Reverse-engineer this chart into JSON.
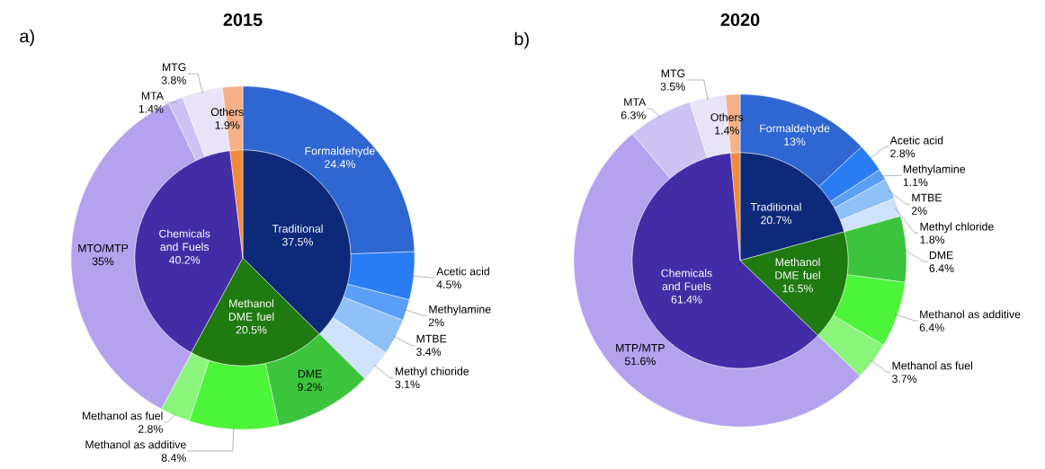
{
  "chart_data": [
    {
      "type": "pie",
      "title": "2015",
      "annotations": [
        "a)"
      ],
      "categories": [
        "Traditional",
        "Methanol DME fuel",
        "Chemicals and Fuels",
        "Others"
      ],
      "values": [
        37.5,
        20.5,
        40.2,
        1.9
      ],
      "value_labels": [
        "37.5%",
        "20.5%",
        "40.2%",
        "1.9%"
      ],
      "colors": [
        "#0d2a7a",
        "#1f7a10",
        "#432da6",
        "#f08a3c"
      ]
    },
    {
      "type": "donut",
      "categories": [
        "Formaldehyde",
        "Acetic acid",
        "Methylamine",
        "MTBE",
        "Methyl chioride",
        "DME",
        "Methanol as additive",
        "Methanol as fuel",
        "MTO/MTP",
        "MTA",
        "MTG",
        null
      ],
      "values": [
        24.4,
        4.5,
        2,
        3.4,
        3.1,
        9.2,
        8.4,
        2.8,
        35,
        1.4,
        3.8,
        1.9
      ],
      "value_labels": [
        "24.4%",
        "4.5%",
        "2%",
        "3.4%",
        "3.1%",
        "9.2%",
        "8.4%",
        "2.8%",
        "35%",
        "1.4%",
        "3.8%",
        null
      ],
      "colors": [
        "#2e66d2",
        "#2a7cf2",
        "#5a9ef5",
        "#8fc0f7",
        "#cfe2fb",
        "#3cc43c",
        "#4cf43a",
        "#8af57a",
        "#b5a2ef",
        "#cdc2f4",
        "#e9e3f9",
        "#f5b08a"
      ]
    },
    {
      "type": "pie",
      "title": "2020",
      "annotations": [
        "b)"
      ],
      "categories": [
        "Traditional",
        "Methanol DME fuel",
        "Chemicals and Fuels",
        "Others"
      ],
      "values": [
        20.7,
        16.5,
        61.4,
        1.4
      ],
      "value_labels": [
        "20.7%",
        "16.5%",
        "61.4%",
        "1.4%"
      ],
      "colors": [
        "#0d2a7a",
        "#1f7a10",
        "#432da6",
        "#f08a3c"
      ]
    },
    {
      "type": "donut",
      "categories": [
        "Formaldehyde",
        "Acetic acid",
        "Methylamine",
        "MTBE",
        "Methyl chloride",
        "DME",
        "Methanol as additive",
        "Methanol as fuel",
        "MTP/MTP",
        "MTA",
        "MTG",
        null
      ],
      "values": [
        13,
        2.8,
        1.1,
        2,
        1.8,
        6.4,
        6.4,
        3.7,
        51.6,
        6.3,
        3.5,
        1.4
      ],
      "value_labels": [
        "13%",
        "2.8%",
        "1.1%",
        "2%",
        "1.8%",
        "6.4%",
        "6.4%",
        "3.7%",
        "51.6%",
        "6.3%",
        "3.5%",
        null
      ],
      "colors": [
        "#2e66d2",
        "#2a7cf2",
        "#5a9ef5",
        "#8fc0f7",
        "#cfe2fb",
        "#3cc43c",
        "#4cf43a",
        "#8af57a",
        "#b5a2ef",
        "#cdc2f4",
        "#e9e3f9",
        "#f5b08a"
      ]
    }
  ]
}
